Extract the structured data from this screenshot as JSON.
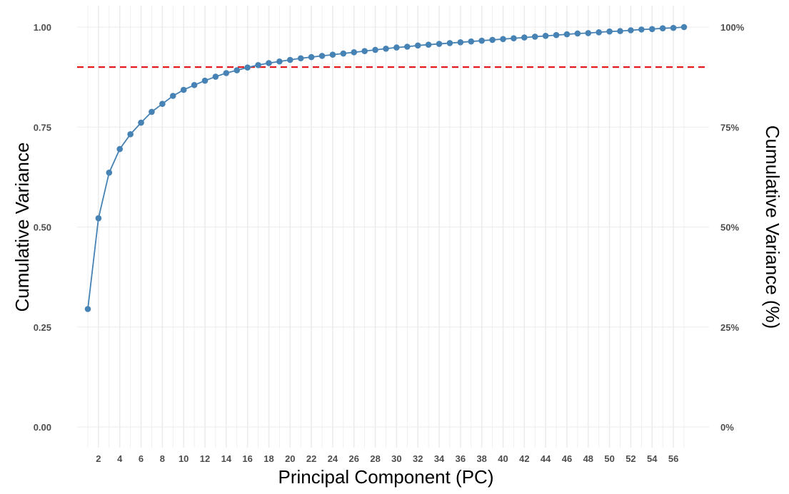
{
  "chart_data": {
    "type": "line",
    "title": "",
    "xlabel": "Principal Component (PC)",
    "ylabel": "Cumulative Variance",
    "ylabel_right": "Cumulative Variance (%)",
    "x": [
      1,
      2,
      3,
      4,
      5,
      6,
      7,
      8,
      9,
      10,
      11,
      12,
      13,
      14,
      15,
      16,
      17,
      18,
      19,
      20,
      21,
      22,
      23,
      24,
      25,
      26,
      27,
      28,
      29,
      30,
      31,
      32,
      33,
      34,
      35,
      36,
      37,
      38,
      39,
      40,
      41,
      42,
      43,
      44,
      45,
      46,
      47,
      48,
      49,
      50,
      51,
      52,
      53,
      54,
      55,
      56,
      57
    ],
    "series": [
      {
        "values": [
          0.295,
          0.522,
          0.636,
          0.695,
          0.732,
          0.761,
          0.788,
          0.808,
          0.828,
          0.843,
          0.855,
          0.866,
          0.876,
          0.885,
          0.892,
          0.899,
          0.905,
          0.91,
          0.914,
          0.918,
          0.922,
          0.925,
          0.928,
          0.931,
          0.934,
          0.937,
          0.94,
          0.943,
          0.946,
          0.949,
          0.951,
          0.954,
          0.956,
          0.958,
          0.96,
          0.962,
          0.964,
          0.966,
          0.968,
          0.97,
          0.972,
          0.974,
          0.976,
          0.978,
          0.98,
          0.982,
          0.984,
          0.985,
          0.987,
          0.989,
          0.99,
          0.992,
          0.994,
          0.995,
          0.997,
          0.998,
          1.0
        ]
      }
    ],
    "x_ticks": [
      "2",
      "4",
      "6",
      "8",
      "10",
      "12",
      "14",
      "16",
      "18",
      "20",
      "22",
      "24",
      "26",
      "28",
      "30",
      "32",
      "34",
      "36",
      "38",
      "40",
      "42",
      "44",
      "46",
      "48",
      "50",
      "52",
      "54",
      "56"
    ],
    "y_ticks_left": [
      "0.00",
      "0.25",
      "0.50",
      "0.75",
      "1.00"
    ],
    "y_ticks_right": [
      "0%",
      "25%",
      "50%",
      "75%",
      "100%"
    ],
    "xlim": [
      1,
      57
    ],
    "ylim": [
      0,
      1
    ],
    "threshold": 0.9,
    "grid": true,
    "legend": "none",
    "colors": {
      "line": "#4682b4",
      "threshold": "#e41a1c",
      "grid": "#ebebeb"
    }
  }
}
